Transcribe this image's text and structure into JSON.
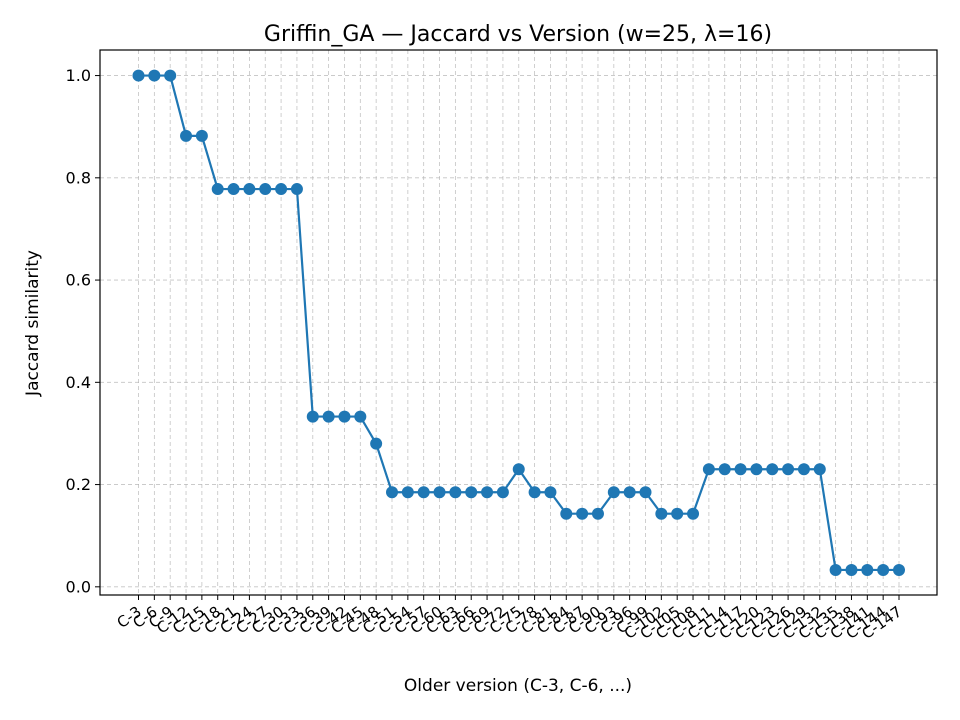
{
  "chart_data": {
    "type": "line",
    "title": "Griffin_GA — Jaccard vs Version (w=25, λ=16)",
    "xlabel": "Older version (C-3, C-6, ...)",
    "ylabel": "Jaccard similarity",
    "categories": [
      "C-3",
      "C-6",
      "C-9",
      "C-12",
      "C-15",
      "C-18",
      "C-21",
      "C-24",
      "C-27",
      "C-30",
      "C-33",
      "C-36",
      "C-39",
      "C-42",
      "C-45",
      "C-48",
      "C-51",
      "C-54",
      "C-57",
      "C-60",
      "C-63",
      "C-66",
      "C-69",
      "C-72",
      "C-75",
      "C-78",
      "C-81",
      "C-84",
      "C-87",
      "C-90",
      "C-93",
      "C-96",
      "C-99",
      "C-102",
      "C-105",
      "C-108",
      "C-111",
      "C-114",
      "C-117",
      "C-120",
      "C-123",
      "C-126",
      "C-129",
      "C-132",
      "C-135",
      "C-138",
      "C-141",
      "C-144",
      "C-147"
    ],
    "series": [
      {
        "values": [
          1.0,
          1.0,
          1.0,
          0.882,
          0.882,
          0.778,
          0.778,
          0.778,
          0.778,
          0.778,
          0.778,
          0.333,
          0.333,
          0.333,
          0.333,
          0.28,
          0.185,
          0.185,
          0.185,
          0.185,
          0.185,
          0.185,
          0.185,
          0.185,
          0.23,
          0.185,
          0.185,
          0.143,
          0.143,
          0.143,
          0.185,
          0.185,
          0.185,
          0.143,
          0.143,
          0.143,
          0.23,
          0.23,
          0.23,
          0.23,
          0.23,
          0.23,
          0.23,
          0.23,
          0.033,
          0.033,
          0.033,
          0.033,
          0.033
        ],
        "color": "#1f77b4"
      }
    ],
    "yticks": [
      "0.0",
      "0.2",
      "0.4",
      "0.6",
      "0.8",
      "1.0"
    ],
    "ylim": [
      -0.016,
      1.05
    ],
    "grid": true,
    "line_color": "#1f77b4"
  }
}
